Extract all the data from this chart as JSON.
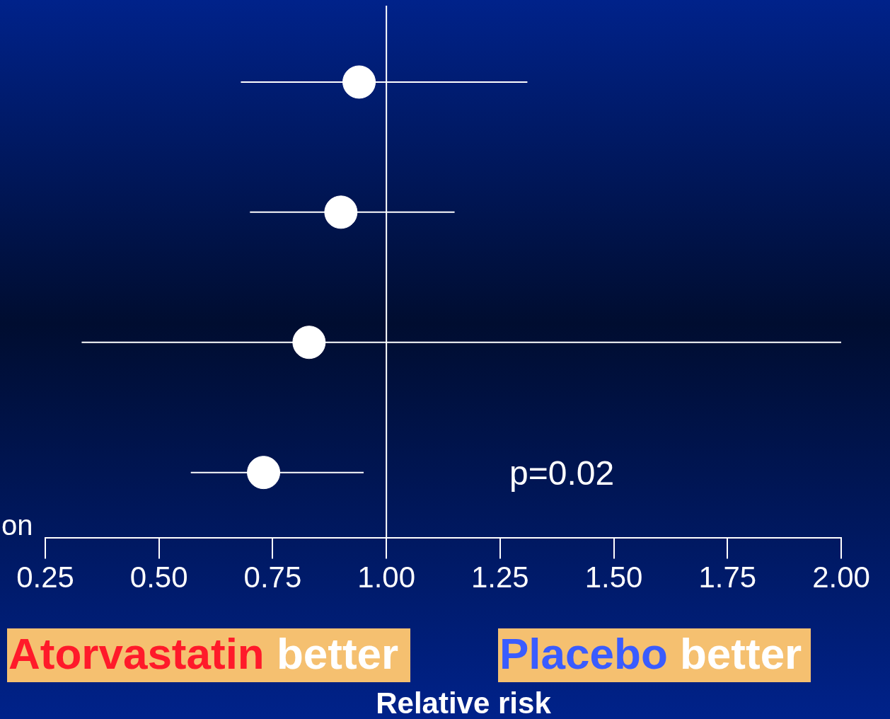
{
  "chart_data": {
    "type": "scatter",
    "orientation": "horizontal",
    "xlabel": "Relative risk",
    "categories": [
      null,
      null,
      null,
      null
    ],
    "values": [
      0.94,
      0.9,
      0.83,
      0.73
    ],
    "errors": [
      [
        0.68,
        1.31
      ],
      [
        0.7,
        1.15
      ],
      [
        0.33,
        2.0
      ],
      [
        0.57,
        0.95
      ]
    ],
    "color": "#ffffff",
    "marker": "circle",
    "xlim": [
      0.25,
      2.0
    ],
    "xticks": [
      {
        "value": 0.25,
        "label": "0.25"
      },
      {
        "value": 0.5,
        "label": "0.50"
      },
      {
        "value": 0.75,
        "label": "0.75"
      },
      {
        "value": 1,
        "label": "1.00"
      },
      {
        "value": 1.25,
        "label": "1.25"
      },
      {
        "value": 1.5,
        "label": "1.50"
      },
      {
        "value": 1.75,
        "label": "1.75"
      },
      {
        "value": 2,
        "label": "2.00"
      }
    ],
    "ref_lines": [
      {
        "axis": "x",
        "value": 1,
        "color": "#ffffff"
      }
    ],
    "annotations": [
      "p=0.02",
      "Atorvastatin better",
      "Placebo better",
      "on"
    ],
    "grid": false,
    "legend": false
  }
}
